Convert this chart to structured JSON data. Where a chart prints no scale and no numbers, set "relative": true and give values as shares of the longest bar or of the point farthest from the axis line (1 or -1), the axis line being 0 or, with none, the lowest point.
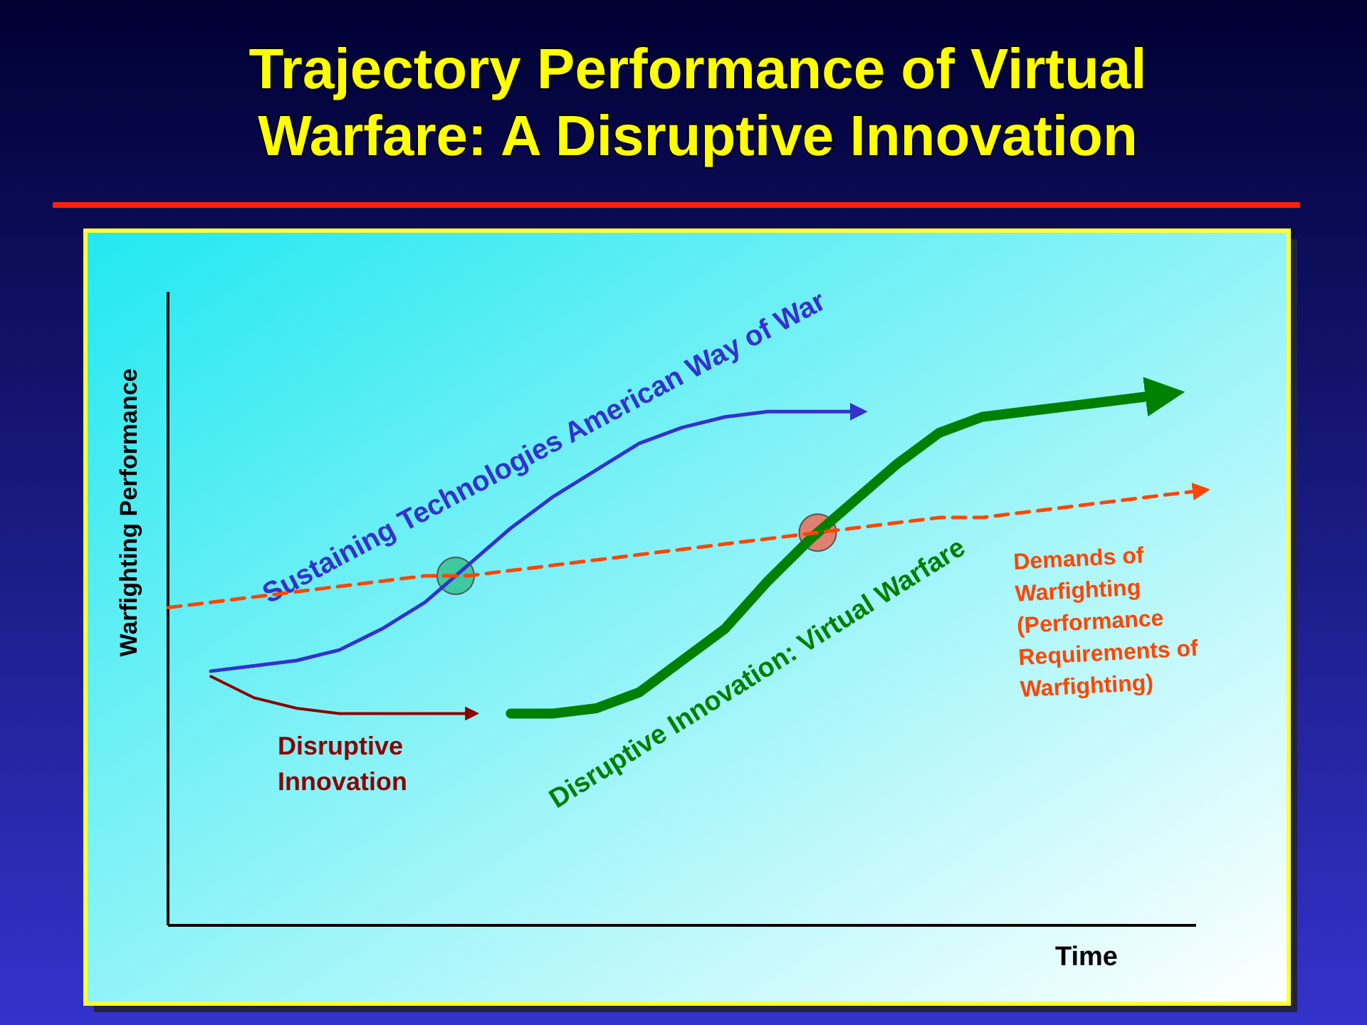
{
  "chart_data": {
    "type": "line",
    "title": "Trajectory Performance of Virtual Warfare: A Disruptive Innovation",
    "xlabel": "Time",
    "ylabel": "Warfighting Performance",
    "relative": true,
    "categories": [
      null,
      null,
      null,
      null,
      null,
      null,
      null,
      null,
      null,
      null,
      null,
      null,
      null,
      null,
      null,
      null,
      null,
      null,
      null,
      null,
      null,
      null,
      null,
      null,
      null
    ],
    "series": [
      {
        "name": "Sustaining Technologies American Way of War",
        "color": "#3333cc",
        "values": [
          null,
          0.48,
          0.49,
          0.5,
          0.52,
          0.56,
          0.61,
          0.68,
          0.75,
          0.81,
          0.86,
          0.91,
          0.94,
          0.96,
          0.97,
          0.97,
          0.97,
          null,
          null,
          null,
          null,
          null,
          null,
          null,
          null
        ]
      },
      {
        "name": "Disruptive Innovation: Virtual Warfare",
        "color": "#008000",
        "values": [
          null,
          null,
          null,
          null,
          null,
          null,
          null,
          null,
          0.4,
          0.4,
          0.41,
          0.44,
          0.5,
          0.56,
          0.65,
          0.73,
          0.8,
          0.87,
          0.93,
          0.96,
          0.97,
          0.98,
          0.99,
          1.0,
          null
        ]
      },
      {
        "name": "Disruptive Innovation",
        "color": "#8b0000",
        "values": [
          null,
          0.47,
          0.43,
          0.41,
          0.4,
          0.4,
          0.4,
          0.4,
          null,
          null,
          null,
          null,
          null,
          null,
          null,
          null,
          null,
          null,
          null,
          null,
          null,
          null,
          null,
          null,
          null
        ]
      },
      {
        "name": "Demands of Warfighting (Performance Requirements of Warfighting)",
        "color": "#ff4500",
        "line_style": "dashed",
        "values": [
          0.6,
          0.61,
          0.62,
          0.63,
          0.64,
          0.65,
          0.66,
          0.66,
          0.67,
          0.68,
          0.69,
          0.7,
          0.71,
          0.72,
          0.73,
          0.74,
          0.75,
          0.76,
          0.77,
          0.77,
          0.78,
          0.79,
          0.8,
          0.81,
          0.82
        ]
      }
    ]
  }
}
